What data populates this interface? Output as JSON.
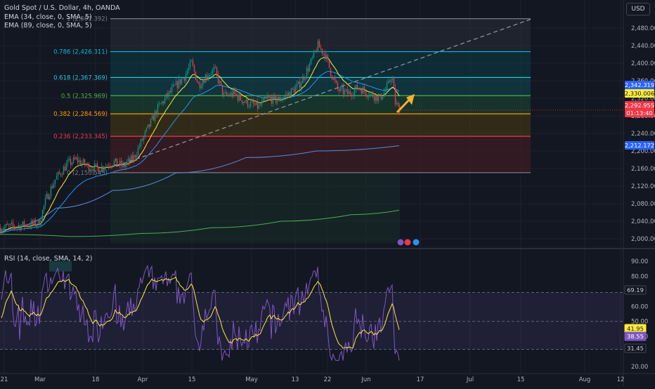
{
  "legend": {
    "title": "Gold Spot / U.S. Dollar, 4h, OANDA",
    "ema1": "EMA (34, close, 0, SMA, 5)",
    "ema2": "EMA (89, close, 0, SMA, 5)",
    "rsi": "RSI (14, close, SMA, 14, 2)"
  },
  "currency": "USD",
  "colors": {
    "background": "#131722",
    "up": "#089981",
    "down": "#f23645",
    "ema34": "#ffeb3b",
    "ema89": "#2196f3",
    "ema_long_blue": "#5b8ad4",
    "ema_long_green": "#4caf50",
    "rsi_line": "#7e57c2",
    "rsi_ma": "#ffeb3b",
    "projection_arrow": "#f0b429"
  },
  "chart_data": [
    {
      "type": "candlestick",
      "symbol": "XAUUSD",
      "timeframe": "4h",
      "x_ticks": [
        "21",
        "Mar",
        "18",
        "Apr",
        "15",
        "May",
        "13",
        "22",
        "Jun",
        "17",
        "Jul",
        "15",
        "Aug",
        "12"
      ],
      "y_ticks": [
        "2,480.00",
        "2,440.00",
        "2,400.00",
        "2,360.00",
        "2,320.00",
        "2,280.00",
        "2,240.00",
        "2,200.00",
        "2,160.00",
        "2,120.00",
        "2,080.00",
        "2,040.00",
        "2,000.00"
      ],
      "ylim": [
        1985,
        2508
      ],
      "fibonacci": [
        {
          "ratio": 1,
          "price": 2501.392,
          "label": "1 (2,501.392)",
          "color": "#787b86"
        },
        {
          "ratio": 0.786,
          "price": 2426.311,
          "label": "0.786 (2,426.311)",
          "color": "#00bcd4"
        },
        {
          "ratio": 0.618,
          "price": 2367.369,
          "label": "0.618 (2,367.369)",
          "color": "#26c6da"
        },
        {
          "ratio": 0.5,
          "price": 2325.969,
          "label": "0.5 (2,325.969)",
          "color": "#4caf50"
        },
        {
          "ratio": 0.382,
          "price": 2284.569,
          "label": "0.382 (2,284.569)",
          "color": "#ff9800"
        },
        {
          "ratio": 0.236,
          "price": 2233.345,
          "label": "0.236 (2,233.345)",
          "color": "#f23645"
        },
        {
          "ratio": 0,
          "price": 2150.545,
          "label": "0 (2,150.545)",
          "color": "#787b86"
        }
      ],
      "price_badges": [
        {
          "label": "2,342.319",
          "price": 2342.319,
          "color": "#2962ff",
          "text_color": "#ffffff"
        },
        {
          "label": "2,330.006",
          "price": 2330.006,
          "color": "#ffeb3b",
          "text_color": "#131722"
        },
        {
          "label": "2,292.955",
          "price": 2292.955,
          "color": "#f23645",
          "text_color": "#ffffff"
        },
        {
          "label": "01:13:40",
          "price": 2280,
          "color": "#f23645",
          "text_color": "#ffffff"
        },
        {
          "label": "2,212.172",
          "price": 2212.172,
          "color": "#2962ff",
          "text_color": "#ffffff"
        }
      ]
    },
    {
      "type": "line",
      "name": "RSI (14, close, SMA, 14, 2)",
      "y_ticks": [
        "90.00",
        "80.00",
        "60.00",
        "50.00",
        "40.00",
        "20.00"
      ],
      "ylim": [
        17,
        93
      ],
      "levels": [
        70,
        30
      ],
      "band": [
        31.45,
        69.19
      ],
      "rsi_badges": [
        {
          "label": "69.19",
          "value": 69.19,
          "color": "#131722",
          "text_color": "#d1d4dc"
        },
        {
          "label": "41.95",
          "value": 41.95,
          "color": "#ffeb3b",
          "text_color": "#131722"
        },
        {
          "label": "38.55",
          "value": 38.55,
          "color": "#7e57c2",
          "text_color": "#ffffff"
        },
        {
          "label": "31.45",
          "value": 31.45,
          "color": "#131722",
          "text_color": "#d1d4dc"
        }
      ]
    }
  ]
}
